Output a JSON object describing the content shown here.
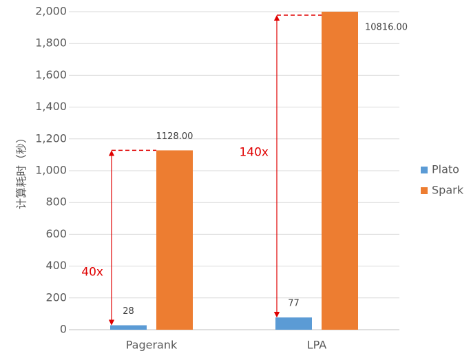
{
  "chart_data": {
    "type": "bar",
    "y_label": "计算耗时（秒）",
    "categories": [
      "Pagerank",
      "LPA"
    ],
    "series": [
      {
        "name": "Plato",
        "color": "#5b9bd5",
        "values": [
          28,
          77
        ],
        "value_labels": [
          "28",
          "77"
        ]
      },
      {
        "name": "Spark",
        "color": "#ed7d31",
        "values": [
          1128,
          10816
        ],
        "value_labels": [
          "1128.00",
          "10816.00"
        ]
      }
    ],
    "annotations": [
      "40x",
      "140x"
    ],
    "ylim": [
      0,
      2000
    ],
    "yticks": [
      0,
      200,
      400,
      600,
      800,
      {
        "value": 1000,
        "label": "1,000"
      },
      {
        "value": 1200,
        "label": "1,200"
      },
      {
        "value": 1400,
        "label": "1,400"
      },
      {
        "value": 1600,
        "label": "1,600"
      },
      {
        "value": 1800,
        "label": "1,800"
      },
      {
        "value": 2000,
        "label": "2,000"
      }
    ],
    "grid": true,
    "legend": "right"
  }
}
